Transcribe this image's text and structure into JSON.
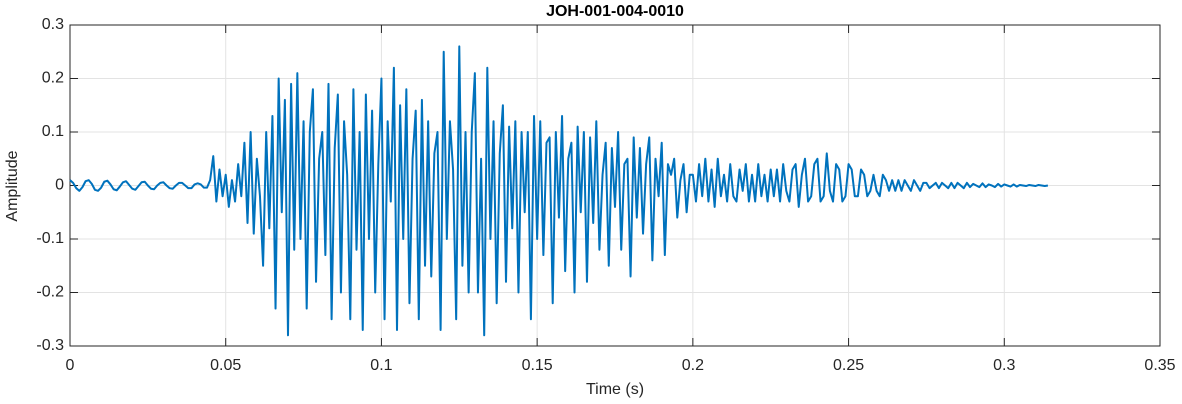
{
  "chart_data": {
    "type": "line",
    "title": "JOH-001-004-0010",
    "xlabel": "Time (s)",
    "ylabel": "Amplitude",
    "color": "#0072BD",
    "grid": true,
    "xlim": [
      0,
      0.35
    ],
    "xticks": [
      0,
      0.05,
      0.1,
      0.15,
      0.2,
      0.25,
      0.3,
      0.35
    ],
    "ylim": [
      -0.3,
      0.3
    ],
    "yticks": [
      -0.3,
      -0.2,
      -0.1,
      0,
      0.1,
      0.2,
      0.3
    ],
    "x": [
      0,
      0.001,
      0.002,
      0.003,
      0.004,
      0.005,
      0.006,
      0.007,
      0.008,
      0.009,
      0.01,
      0.011,
      0.012,
      0.013,
      0.014,
      0.015,
      0.016,
      0.017,
      0.018,
      0.019,
      0.02,
      0.021,
      0.022,
      0.023,
      0.024,
      0.025,
      0.026,
      0.027,
      0.028,
      0.029,
      0.03,
      0.031,
      0.032,
      0.033,
      0.034,
      0.035,
      0.036,
      0.037,
      0.038,
      0.039,
      0.04,
      0.041,
      0.042,
      0.043,
      0.044,
      0.045,
      0.046,
      0.047,
      0.048,
      0.049,
      0.05,
      0.051,
      0.052,
      0.053,
      0.054,
      0.055,
      0.056,
      0.057,
      0.058,
      0.059,
      0.06,
      0.061,
      0.062,
      0.063,
      0.064,
      0.065,
      0.066,
      0.067,
      0.068,
      0.069,
      0.07,
      0.071,
      0.072,
      0.073,
      0.074,
      0.075,
      0.076,
      0.077,
      0.078,
      0.079,
      0.08,
      0.081,
      0.082,
      0.083,
      0.084,
      0.085,
      0.086,
      0.087,
      0.088,
      0.089,
      0.09,
      0.091,
      0.092,
      0.093,
      0.094,
      0.095,
      0.096,
      0.097,
      0.098,
      0.099,
      0.1,
      0.101,
      0.102,
      0.103,
      0.104,
      0.105,
      0.106,
      0.107,
      0.108,
      0.109,
      0.11,
      0.111,
      0.112,
      0.113,
      0.114,
      0.115,
      0.116,
      0.117,
      0.118,
      0.119,
      0.12,
      0.121,
      0.122,
      0.123,
      0.124,
      0.125,
      0.126,
      0.127,
      0.128,
      0.129,
      0.13,
      0.131,
      0.132,
      0.133,
      0.134,
      0.135,
      0.136,
      0.137,
      0.138,
      0.139,
      0.14,
      0.141,
      0.142,
      0.143,
      0.144,
      0.145,
      0.146,
      0.147,
      0.148,
      0.149,
      0.15,
      0.151,
      0.152,
      0.153,
      0.154,
      0.155,
      0.156,
      0.157,
      0.158,
      0.159,
      0.16,
      0.161,
      0.162,
      0.163,
      0.164,
      0.165,
      0.166,
      0.167,
      0.168,
      0.169,
      0.17,
      0.171,
      0.172,
      0.173,
      0.174,
      0.175,
      0.176,
      0.177,
      0.178,
      0.179,
      0.18,
      0.181,
      0.182,
      0.183,
      0.184,
      0.185,
      0.186,
      0.187,
      0.188,
      0.189,
      0.19,
      0.191,
      0.192,
      0.193,
      0.194,
      0.195,
      0.196,
      0.197,
      0.198,
      0.199,
      0.2,
      0.201,
      0.202,
      0.203,
      0.204,
      0.205,
      0.206,
      0.207,
      0.208,
      0.209,
      0.21,
      0.211,
      0.212,
      0.213,
      0.214,
      0.215,
      0.216,
      0.217,
      0.218,
      0.219,
      0.22,
      0.221,
      0.222,
      0.223,
      0.224,
      0.225,
      0.226,
      0.227,
      0.228,
      0.229,
      0.23,
      0.231,
      0.232,
      0.233,
      0.234,
      0.235,
      0.236,
      0.237,
      0.238,
      0.239,
      0.24,
      0.241,
      0.242,
      0.243,
      0.244,
      0.245,
      0.246,
      0.247,
      0.248,
      0.249,
      0.25,
      0.251,
      0.252,
      0.253,
      0.254,
      0.255,
      0.256,
      0.257,
      0.258,
      0.259,
      0.26,
      0.261,
      0.262,
      0.263,
      0.264,
      0.265,
      0.266,
      0.267,
      0.268,
      0.269,
      0.27,
      0.271,
      0.272,
      0.273,
      0.274,
      0.275,
      0.276,
      0.277,
      0.278,
      0.279,
      0.28,
      0.281,
      0.282,
      0.283,
      0.284,
      0.285,
      0.286,
      0.287,
      0.288,
      0.289,
      0.29,
      0.291,
      0.292,
      0.293,
      0.294,
      0.295,
      0.296,
      0.297,
      0.298,
      0.299,
      0.3,
      0.301,
      0.302,
      0.303,
      0.304,
      0.305,
      0.306,
      0.307,
      0.308,
      0.309,
      0.31,
      0.311,
      0.312,
      0.313,
      0.314
    ],
    "values": [
      0.01,
      0.005,
      -0.005,
      -0.01,
      -0.003,
      0.008,
      0.01,
      0.003,
      -0.008,
      -0.01,
      -0.004,
      0.007,
      0.009,
      0.002,
      -0.007,
      -0.009,
      -0.002,
      0.006,
      0.008,
      0.001,
      -0.006,
      -0.008,
      -0.001,
      0.006,
      0.007,
      0,
      -0.006,
      -0.007,
      0,
      0.005,
      0.006,
      0,
      -0.005,
      -0.006,
      0,
      0.005,
      0.005,
      0,
      -0.005,
      -0.005,
      0.002,
      0.004,
      0.002,
      -0.004,
      -0.004,
      0.01,
      0.055,
      -0.03,
      0.03,
      -0.02,
      0.02,
      -0.04,
      0.01,
      -0.03,
      0.04,
      -0.02,
      0.08,
      -0.07,
      0.1,
      -0.09,
      0.05,
      -0.02,
      -0.15,
      0.1,
      -0.08,
      0.13,
      -0.23,
      0.2,
      -0.05,
      0.16,
      -0.28,
      0.19,
      -0.12,
      0.21,
      -0.1,
      0.12,
      -0.23,
      0.1,
      0.18,
      -0.18,
      0.05,
      0.1,
      -0.13,
      0.19,
      -0.25,
      0.07,
      0.17,
      -0.2,
      0.12,
      0.02,
      -0.25,
      0.18,
      -0.12,
      0.1,
      -0.27,
      0.17,
      -0.1,
      0.14,
      -0.2,
      0.04,
      0.2,
      -0.25,
      0.12,
      -0.03,
      0.22,
      -0.27,
      0.15,
      -0.1,
      0.18,
      -0.22,
      0.05,
      0.14,
      -0.25,
      0.16,
      -0.15,
      0.12,
      -0.17,
      0.06,
      0.1,
      -0.27,
      0.25,
      -0.1,
      0.12,
      0.03,
      -0.25,
      0.26,
      -0.15,
      0.1,
      -0.2,
      0.1,
      0.21,
      -0.2,
      0.05,
      -0.28,
      0.22,
      -0.1,
      0.12,
      -0.22,
      0.06,
      0.15,
      -0.18,
      0.11,
      -0.08,
      0.12,
      -0.2,
      0.1,
      -0.05,
      0.1,
      -0.25,
      0.13,
      -0.1,
      0.12,
      -0.13,
      0.08,
      0.09,
      -0.22,
      0.1,
      -0.06,
      0.13,
      -0.16,
      0.05,
      0.08,
      -0.2,
      0.11,
      -0.05,
      0.1,
      -0.18,
      0.09,
      -0.07,
      0.12,
      -0.12,
      0.02,
      0.08,
      -0.15,
      0.07,
      -0.04,
      0.1,
      -0.12,
      0.04,
      0.05,
      -0.17,
      0.09,
      -0.06,
      0.07,
      -0.09,
      0.04,
      0.09,
      -0.14,
      0.05,
      -0.02,
      0.08,
      -0.13,
      0.04,
      0.02,
      0.05,
      -0.06,
      0.01,
      0.04,
      -0.05,
      0.02,
      0.02,
      -0.03,
      0.04,
      -0.02,
      0.05,
      -0.03,
      0.03,
      -0.04,
      0.05,
      -0.02,
      0.02,
      -0.03,
      0.04,
      -0.02,
      -0.03,
      0.03,
      -0.01,
      0.04,
      -0.03,
      0.02,
      -0.03,
      0.04,
      -0.02,
      0.02,
      -0.03,
      0.03,
      -0.02,
      0.03,
      -0.03,
      0.04,
      -0.01,
      -0.03,
      0.03,
      0.04,
      -0.04,
      0.02,
      0.05,
      -0.03,
      -0.02,
      0.04,
      0.05,
      -0.03,
      -0.02,
      0.06,
      -0.01,
      -0.03,
      0.04,
      0.03,
      -0.03,
      -0.02,
      0.04,
      0.03,
      -0.02,
      -0.02,
      0.03,
      0.02,
      -0.02,
      -0.01,
      0.02,
      -0.01,
      -0.02,
      0.02,
      0.01,
      -0.01,
      0.01,
      -0.01,
      0.01,
      -0.01,
      0.01,
      0,
      -0.01,
      0.01,
      0,
      -0.01,
      0.005,
      0.005,
      -0.005,
      0,
      0.005,
      -0.005,
      0.005,
      0,
      -0.005,
      0.005,
      -0.005,
      0.005,
      0,
      -0.005,
      0.005,
      -0.003,
      0.003,
      0,
      -0.003,
      0.004,
      -0.003,
      0.002,
      0,
      -0.003,
      0.003,
      -0.002,
      0.002,
      0,
      -0.002,
      0.002,
      -0.002,
      0.001,
      0,
      -0.001,
      0.001,
      0,
      -0.001,
      0.001,
      0,
      -0.001,
      0
    ]
  }
}
